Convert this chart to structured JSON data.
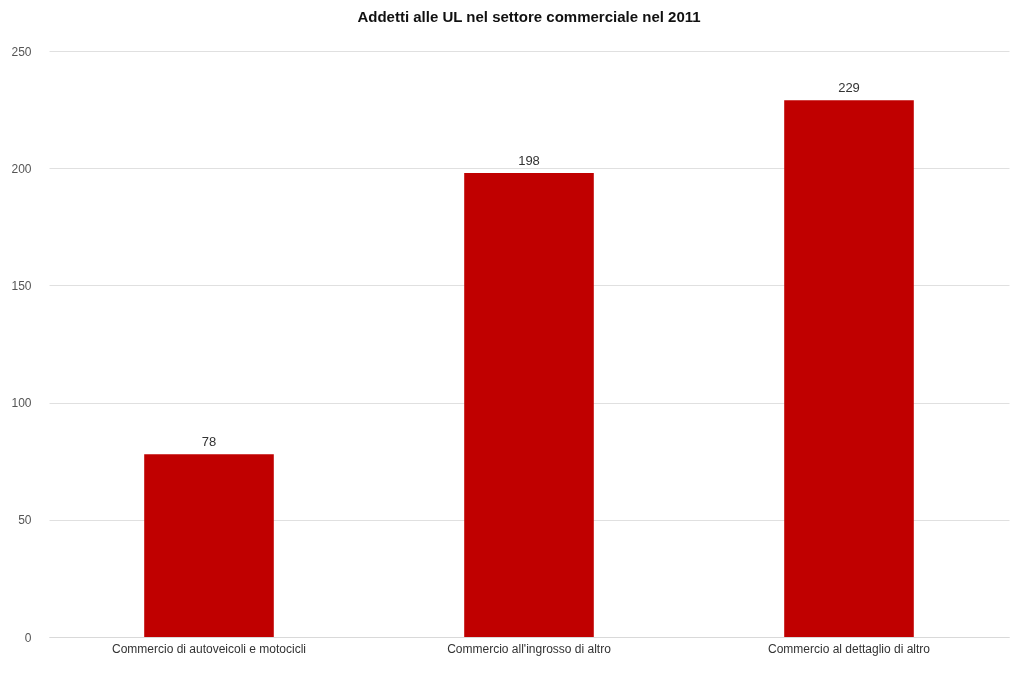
{
  "chart_data": {
    "type": "bar",
    "title": "Addetti alle UL nel settore commerciale nel 2011",
    "categories": [
      "Commercio di autoveicoli e motocicli",
      "Commercio all'ingrosso di altro",
      "Commercio al dettaglio di altro"
    ],
    "values": [
      78,
      198,
      229
    ],
    "color": "#c00000",
    "ylim": [
      0,
      250
    ],
    "yticks": [
      0,
      50,
      100,
      150,
      200,
      250
    ],
    "grid": "y",
    "data_labels": true
  }
}
